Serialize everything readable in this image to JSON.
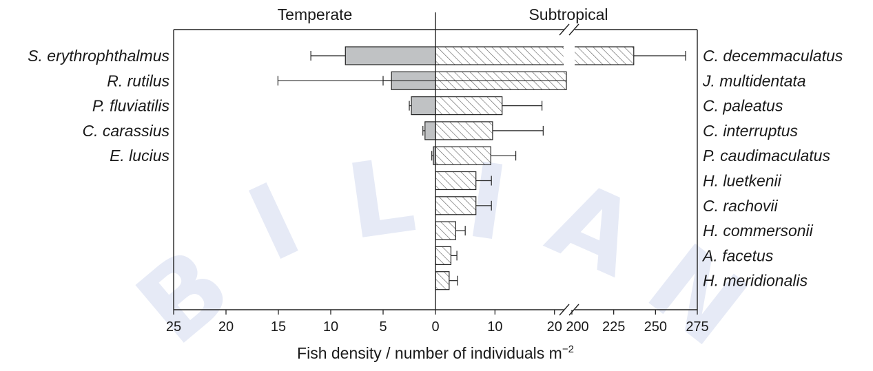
{
  "chart_data": {
    "type": "bar",
    "orientation": "horizontal",
    "title": "",
    "xlabel": "Fish density / number of individuals m",
    "xlabel_superscript": "−2",
    "left_panel": {
      "label": "Temperate",
      "xlim": [
        0,
        25
      ],
      "tick_labels": [
        "25",
        "20",
        "15",
        "10",
        "5",
        "0"
      ],
      "tick_values": [
        25,
        20,
        15,
        10,
        5,
        0
      ],
      "fill": "#c0c2c4",
      "categories": [
        "S. erythrophthalmus",
        "R. rutilus",
        "P. fluviatilis",
        "C. carassius",
        "E. lucius"
      ],
      "values": [
        8.6,
        4.2,
        2.3,
        1.0,
        0.2
      ],
      "errors": [
        3.3,
        0.8,
        0.2,
        0.2,
        0.15
      ]
    },
    "right_panel": {
      "label": "Subtropical",
      "axis_break": true,
      "segment1_xlim": [
        0,
        22
      ],
      "segment1_tick_labels": [
        "10",
        "20"
      ],
      "segment1_tick_values": [
        10,
        20
      ],
      "segment2_xlim": [
        200,
        275
      ],
      "segment2_tick_labels": [
        "200",
        "225",
        "250",
        "275"
      ],
      "segment2_tick_values": [
        200,
        225,
        250,
        275
      ],
      "fill_pattern": "diagonal-hatch",
      "categories": [
        "C. decemmaculatus",
        "J. multidentata",
        "C. paleatus",
        "C. interruptus",
        "P. caudimaculatus",
        "H. luetkenii",
        "C. rachovii",
        "H. commersonii",
        "A. facetus",
        "H. meridionalis"
      ],
      "values": [
        237,
        22,
        11.2,
        9.6,
        9.3,
        6.8,
        6.8,
        3.4,
        2.6,
        2.3
      ],
      "errors": [
        31,
        2.2,
        6.7,
        8.5,
        4.2,
        2.6,
        2.6,
        1.6,
        1.0,
        1.4
      ]
    }
  },
  "watermark": {
    "text": "BILIAN",
    "color": "#8fa3d8"
  }
}
